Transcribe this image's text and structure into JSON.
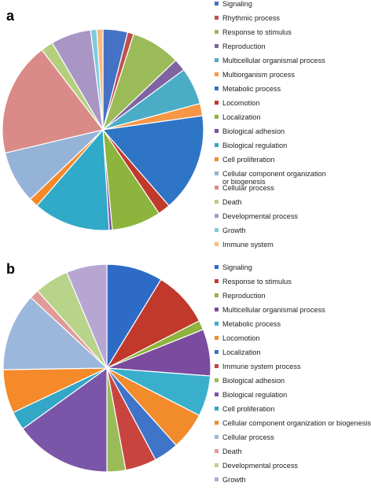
{
  "chart_data": [
    {
      "type": "pie",
      "panel_label": "a",
      "legend_placement": "right",
      "categories": [
        "Signaling",
        "Rhythmic process",
        "Response to stimulus",
        "Reproduction",
        "Multicellular organismal process",
        "Multiorganism process",
        "Metabolic process",
        "Locomotion",
        "Localization",
        "Biological adhesion",
        "Biological regulation",
        "Cell proliferation",
        "Cellular component organization\nor biogenesis",
        "Cellular process",
        "Death",
        "Developmental process",
        "Growth",
        "Immune system"
      ],
      "values": [
        4.0,
        1.0,
        8.0,
        2.0,
        6.0,
        2.0,
        16.0,
        2.0,
        8.0,
        0.5,
        12.5,
        1.5,
        8.5,
        18.5,
        2.0,
        6.5,
        1.0,
        1.0
      ],
      "colors": [
        "#4472C4",
        "#C0504D",
        "#9BBB59",
        "#8064A2",
        "#4BACC6",
        "#F79646",
        "#2E75C6",
        "#C0392B",
        "#8DB43D",
        "#7B4FA0",
        "#31A9C9",
        "#F58A2A",
        "#95B3D7",
        "#DA8A87",
        "#B4CF7E",
        "#A896C5",
        "#7FCBDE",
        "#F9B97F"
      ]
    },
    {
      "type": "pie",
      "panel_label": "b",
      "legend_placement": "right",
      "categories": [
        "Signaling",
        "Response to stimulus",
        "Reproduction",
        "Multicellular organismal process",
        "Metabolic process",
        "Locomotion",
        "Localization",
        "Immune system process",
        "Biological adhesion",
        "Biological regulation",
        "Cell proliferation",
        "Cellular component organization or biogenesis",
        "Cellular process",
        "Death",
        "Developmental process",
        "Growth"
      ],
      "values": [
        9.0,
        9.0,
        1.5,
        7.5,
        6.5,
        6.0,
        4.0,
        5.0,
        3.0,
        15.5,
        3.0,
        7.0,
        12.5,
        1.5,
        5.5,
        6.5
      ],
      "colors": [
        "#2E6BC6",
        "#C0392B",
        "#8DB43D",
        "#7A4B9E",
        "#3AAFCC",
        "#F28B2C",
        "#3F74C8",
        "#C8443F",
        "#9BBB59",
        "#7B55A8",
        "#33A7C6",
        "#F58A2A",
        "#9BB7DC",
        "#E19A97",
        "#B8D38A",
        "#B7A5D2"
      ]
    }
  ]
}
